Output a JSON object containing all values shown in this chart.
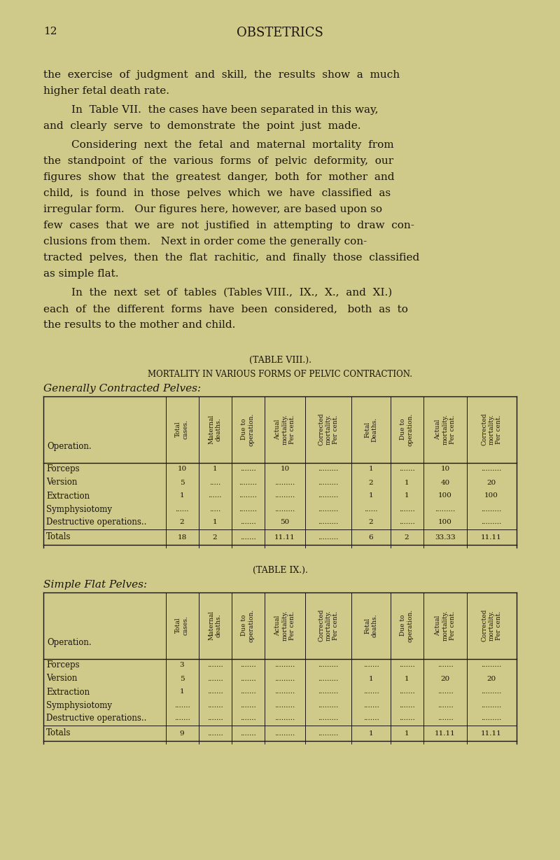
{
  "bg_color": "#cfc98a",
  "text_color": "#1a1508",
  "page_number": "12",
  "page_title": "OBSTETRICS",
  "para1": "the exercise of judgment and skill, the results show a much higher fetal death rate.",
  "para2": "In  Table VII.  the cases have been separated in this way, and clearly serve to demonstrate the point just made.",
  "para3a": "Considering next the fetal and maternal mortality from the standpoint of the various forms of pelvic deformity, our figures show that the greatest danger, both for mother and child, is found in those pelves which we have classified as irregular form.  Our figures here, however, are based upon so few cases that we are not justified in attempting to draw con-clusions from them.  Next in order come the generally con-tracted pelves, then the flat rachitic, and finally those classified as simple flat.",
  "para4": "In the next set of tables (Tables VIII., IX., X., and XI.) each of the different forms have been considered,  both as to the results to the mother and child.",
  "table8_title": "(TABLE VIII.).",
  "table8_subtitle": "MORTALITY IN VARIOUS FORMS OF PELVIC CONTRACTION.",
  "table8_section": "Generally Contracted Pelves:",
  "table8_col_headers": [
    "Total\ncases.",
    "Maternal\ndeaths.",
    "Due to\noperation.",
    "Actual\nmortality.\nPer cent.",
    "Corrected\nmortality.\nPer cent.",
    "Fetal\nDeaths.",
    "Due to\noperation.",
    "Actual\nmortality.\nPer cent.",
    "Corrected\nmortality.\nPer cent."
  ],
  "table8_rows": [
    [
      "Forceps",
      "10",
      "1",
      ".......",
      "10",
      ".........",
      "1",
      ".......",
      "10",
      "........."
    ],
    [
      "Version",
      "5",
      ".....",
      "........",
      ".........",
      ".........",
      "2",
      "1",
      "40",
      "20"
    ],
    [
      "Extraction",
      "1",
      "......",
      "........",
      ".........",
      ".........",
      "1",
      "1",
      "100",
      "100"
    ],
    [
      "Symphysiotomy",
      "......",
      ".....",
      "........",
      ".........",
      ".........",
      "......",
      ".......",
      ".........",
      "........."
    ],
    [
      "Destructive operations..",
      "2",
      "1",
      ".......",
      "50",
      ".........",
      "2",
      ".......",
      "100",
      "........."
    ]
  ],
  "table8_totals": [
    "Totals",
    "18",
    "2",
    ".......",
    "11.11",
    ".........",
    "6",
    "2",
    "33.33",
    "11.11"
  ],
  "table9_title": "(TABLE IX.).",
  "table9_section": "Simple Flat Pelves:",
  "table9_col_headers": [
    "Total\ncases.",
    "Maternal\ndeaths.",
    "Due to\noperation.",
    "Actual\nmortality.\nPer cent.",
    "Corrected\nmortality.\nPer cent.",
    "Fetal\ndeaths.",
    "Due to\noperation.",
    "Actual\nmortality.\nPer cent.",
    "Corrected\nmortality.\nPer cent."
  ],
  "table9_rows": [
    [
      "Forceps",
      "3",
      ".......",
      ".......",
      ".........",
      ".........",
      ".......",
      ".......",
      ".......",
      "........."
    ],
    [
      "Version",
      "5",
      ".......",
      ".......",
      ".........",
      ".........",
      "1",
      "1",
      "20",
      "20"
    ],
    [
      "Extraction",
      "1",
      ".......",
      ".......",
      ".........",
      ".........",
      ".......",
      ".......",
      ".......",
      "........."
    ],
    [
      "Symphysiotomy",
      ".......",
      ".......",
      ".......",
      ".........",
      ".........",
      ".......",
      ".......",
      ".......",
      "........."
    ],
    [
      "Destructive operations..",
      ".......",
      ".......",
      ".......",
      ".........",
      ".........",
      ".......",
      ".......",
      ".......",
      "........."
    ]
  ],
  "table9_totals": [
    "Totals",
    "9",
    ".......",
    ".......",
    ".........",
    ".........",
    "1",
    "1",
    "11.11",
    "11.11"
  ]
}
